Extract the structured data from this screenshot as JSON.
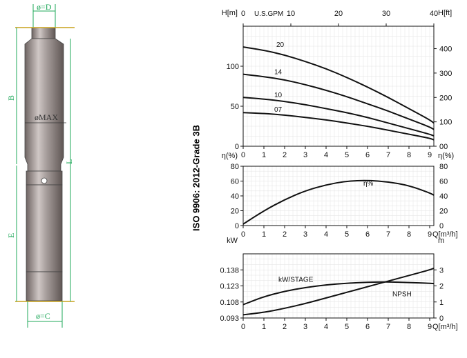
{
  "pump": {
    "labels": {
      "top": "ø=D",
      "max": "øMAX",
      "bottom": "ø=C",
      "B": "B",
      "E": "E",
      "L": "L"
    },
    "colors": {
      "dimension": "#1fa85a",
      "body": "#8a7f7d",
      "flange": "#c9a21c"
    }
  },
  "side_title": "ISO 9906: 2012-Grade 3B",
  "chart_data": [
    {
      "type": "line",
      "name": "head",
      "ylabel_left": "H[m]",
      "ylabel_right": "H[ft]",
      "top_axis_label": "U.S.GPM",
      "top_ticks": [
        "0",
        "10",
        "20",
        "30",
        "40"
      ],
      "top_range": [
        0,
        40
      ],
      "xlim": [
        0,
        9.2
      ],
      "x_ticks": [
        "0",
        "1",
        "2",
        "3",
        "4",
        "5",
        "6",
        "7",
        "8",
        "9"
      ],
      "ylim": [
        0,
        150
      ],
      "y_ticks": [
        "0",
        "50",
        "100"
      ],
      "right_ylim": [
        0,
        492
      ],
      "right_ticks": [
        "00",
        "100",
        "200",
        "300",
        "400"
      ],
      "grid": true,
      "series": [
        {
          "name": "20",
          "label_at": [
            1.6,
            124
          ],
          "x": [
            0,
            1,
            2,
            3,
            4,
            5,
            6,
            7,
            8,
            9,
            9.2
          ],
          "y": [
            124,
            120,
            114,
            106,
            97,
            86,
            74,
            61,
            47,
            33,
            29
          ]
        },
        {
          "name": "14",
          "label_at": [
            1.5,
            90
          ],
          "x": [
            0,
            1,
            2,
            3,
            4,
            5,
            6,
            7,
            8,
            9,
            9.2
          ],
          "y": [
            90,
            87,
            83,
            77,
            70,
            62,
            53,
            44,
            34,
            24,
            21
          ]
        },
        {
          "name": "10",
          "label_at": [
            1.5,
            61
          ],
          "x": [
            0,
            1,
            2,
            3,
            4,
            5,
            6,
            7,
            8,
            9,
            9.2
          ],
          "y": [
            61,
            59,
            56,
            52,
            47,
            42,
            36,
            29,
            22,
            15,
            13
          ]
        },
        {
          "name": "07",
          "label_at": [
            1.5,
            43
          ],
          "x": [
            0,
            1,
            2,
            3,
            4,
            5,
            6,
            7,
            8,
            9,
            9.2
          ],
          "y": [
            42,
            41,
            39,
            36,
            33,
            29,
            25,
            20,
            15,
            10,
            8
          ]
        }
      ]
    },
    {
      "type": "line",
      "name": "efficiency",
      "ylabel_left": "η(%)",
      "ylabel_right": "η(%)",
      "xlabel": "Q[m³/h]",
      "xlim": [
        0,
        9.2
      ],
      "x_ticks": [
        "0",
        "1",
        "2",
        "3",
        "4",
        "5",
        "6",
        "7",
        "8",
        "9"
      ],
      "ylim": [
        0,
        80
      ],
      "y_ticks": [
        "0",
        "20",
        "40",
        "60",
        "80"
      ],
      "grid": true,
      "series": [
        {
          "name": "η%",
          "label_at": [
            5.8,
            54
          ],
          "x": [
            0,
            1,
            2,
            3,
            4,
            5,
            6,
            7,
            8,
            9,
            9.2
          ],
          "y": [
            2,
            20,
            35,
            47,
            55,
            60,
            61,
            59,
            54,
            44,
            41
          ]
        }
      ]
    },
    {
      "type": "line",
      "name": "power_npsh",
      "ylabel_left": "kW",
      "ylabel_right": "m",
      "xlabel": "Q[m³/h]",
      "xlim": [
        0,
        9.2
      ],
      "x_ticks": [
        "0",
        "1",
        "2",
        "3",
        "4",
        "5",
        "6",
        "7",
        "8",
        "9"
      ],
      "ylim": [
        0.093,
        0.153
      ],
      "y_ticks": [
        "0.093",
        "0.108",
        "0.123",
        "0.138"
      ],
      "right_ylim": [
        0,
        4
      ],
      "right_ticks": [
        "0",
        "1",
        "2",
        "3"
      ],
      "grid": true,
      "series": [
        {
          "name": "kW/STAGE",
          "label_at": [
            1.7,
            0.127
          ],
          "axis": "left",
          "x": [
            0,
            1,
            2,
            3,
            4,
            5,
            6,
            7,
            8,
            9,
            9.2
          ],
          "y": [
            0.1055,
            0.113,
            0.118,
            0.1215,
            0.124,
            0.1255,
            0.1265,
            0.1268,
            0.1262,
            0.1255,
            0.1252
          ]
        },
        {
          "name": "NPSH",
          "label_at": [
            7.2,
            1.35
          ],
          "axis": "right",
          "x": [
            0,
            1,
            2,
            3,
            4,
            5,
            6,
            7,
            8,
            9,
            9.2
          ],
          "y": [
            0.2,
            0.35,
            0.6,
            0.9,
            1.25,
            1.6,
            1.95,
            2.3,
            2.65,
            3.0,
            3.1
          ]
        }
      ]
    }
  ]
}
